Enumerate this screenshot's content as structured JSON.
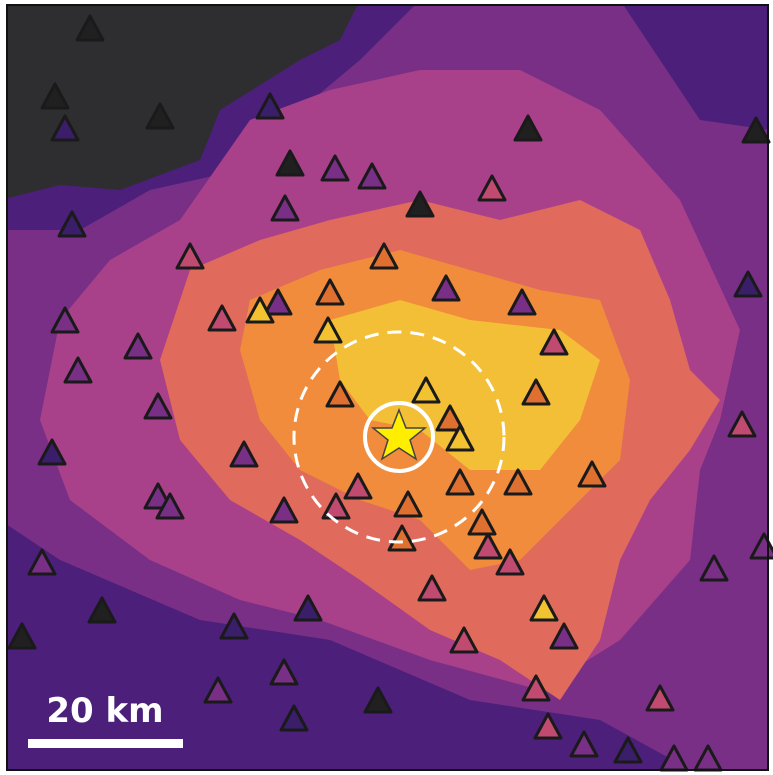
{
  "scale_bar": {
    "label": "20 km"
  }
}
